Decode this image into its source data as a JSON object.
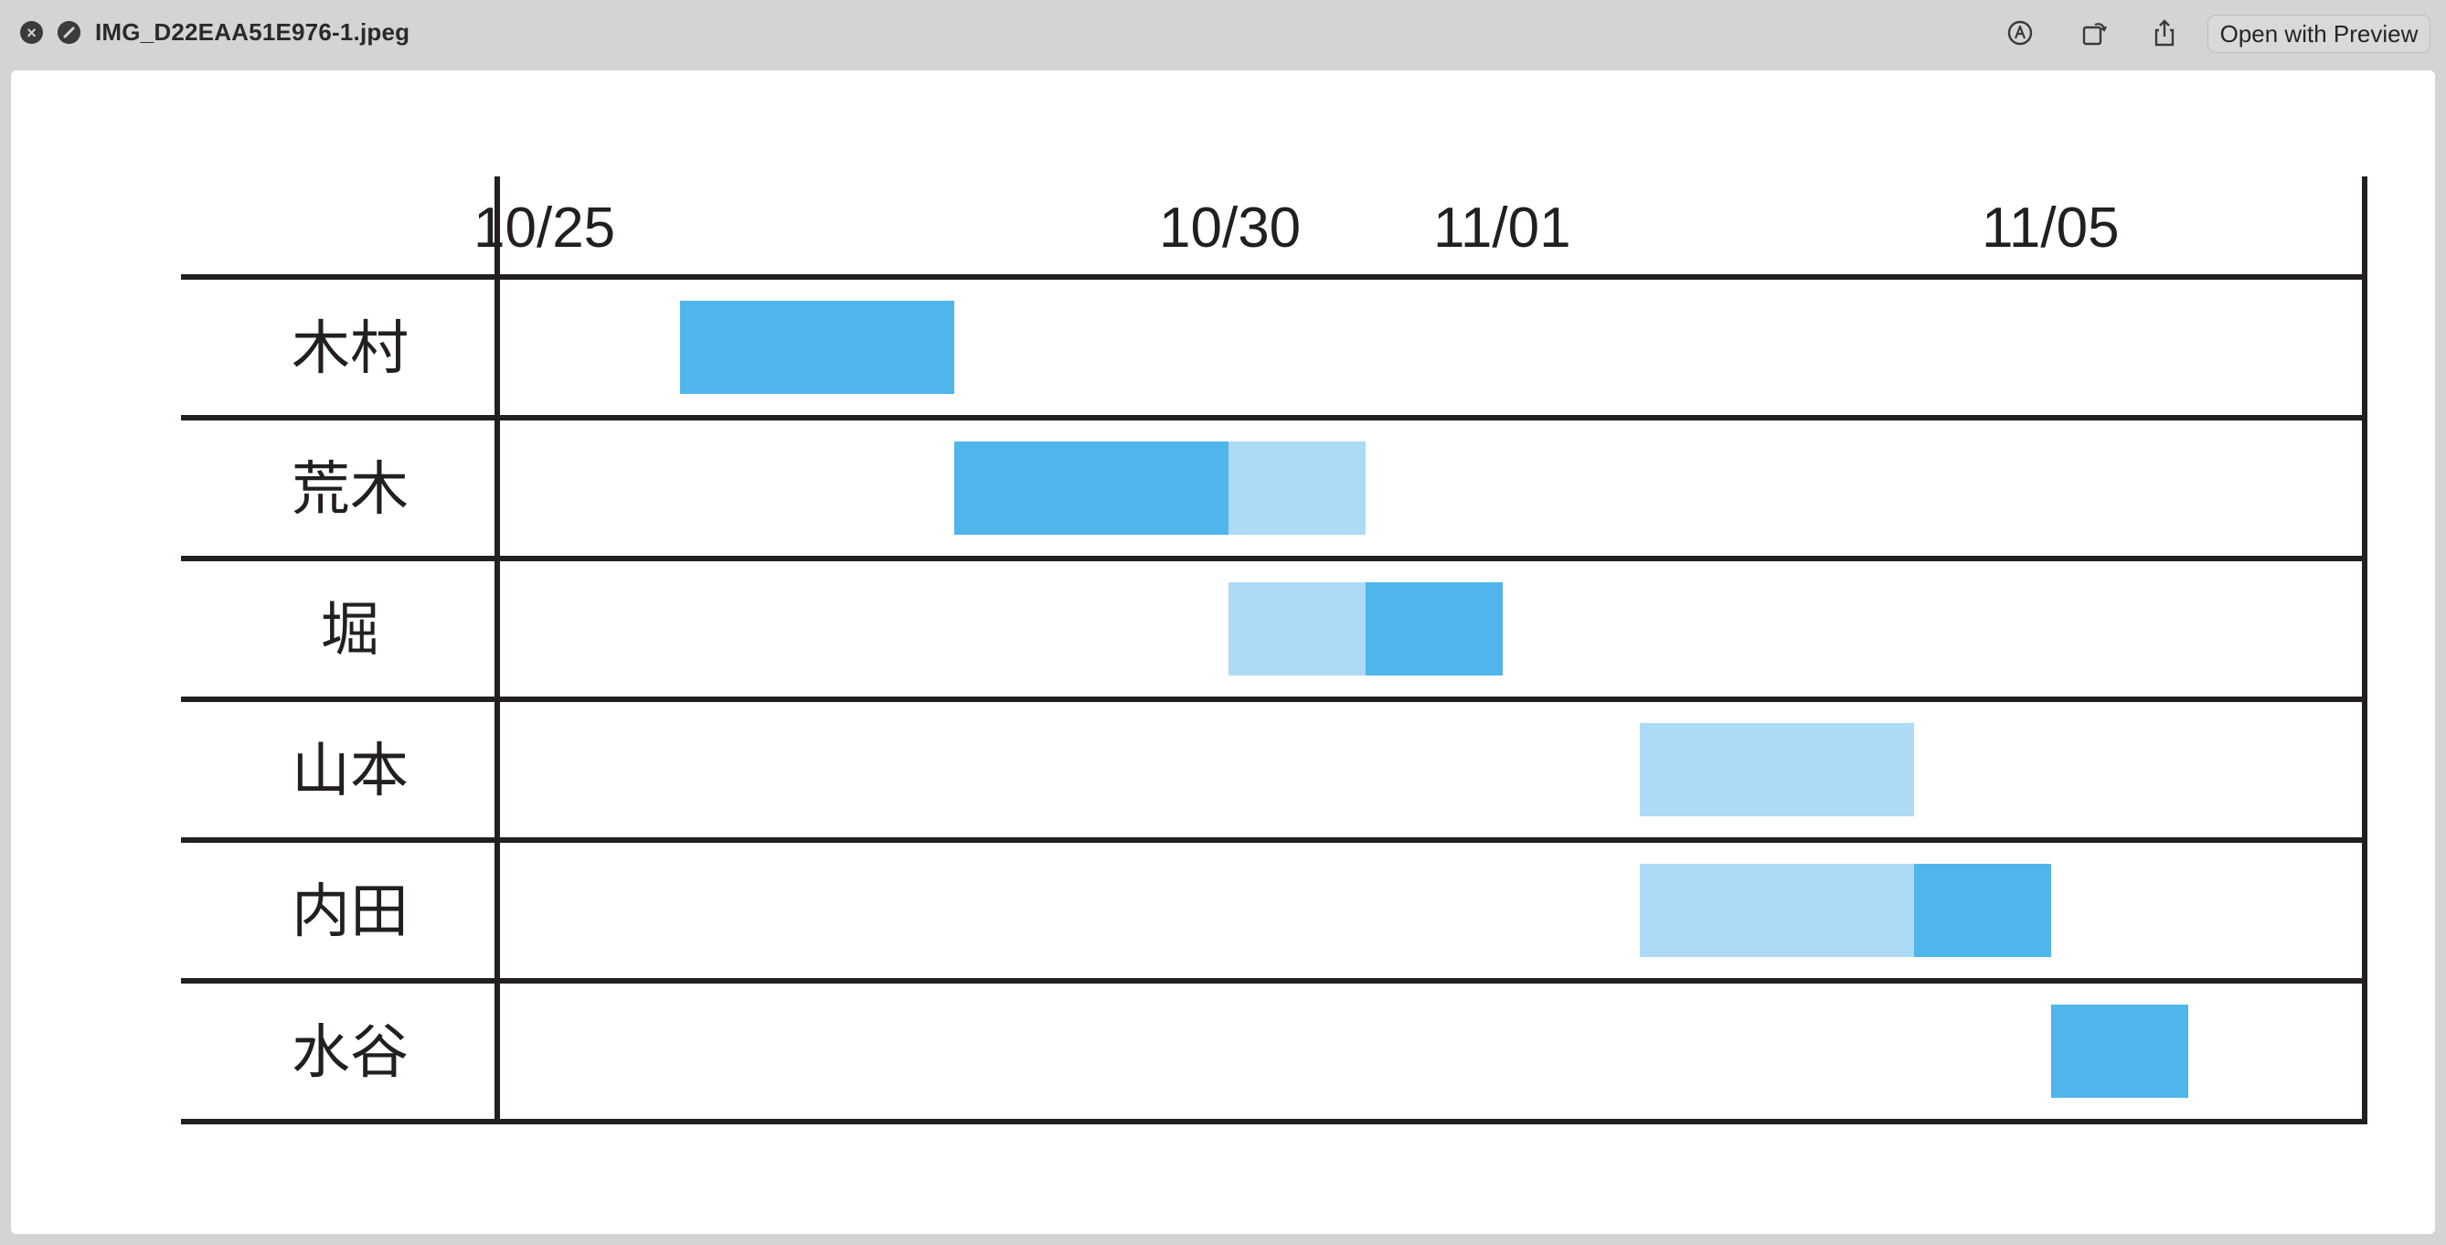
{
  "window": {
    "title": "IMG_D22EAA51E976-1.jpeg",
    "open_button_label": "Open with Preview",
    "icons": [
      "close-icon",
      "open-icon",
      "markup-icon",
      "rotate-icon",
      "share-icon"
    ]
  },
  "chart_data": {
    "type": "gantt",
    "date_labels": [
      "10/25",
      "10/30",
      "11/01",
      "11/05"
    ],
    "rows": [
      {
        "name": "木村",
        "segments": [
          {
            "start": "10/26",
            "end": "10/28",
            "shade": "dark"
          }
        ]
      },
      {
        "name": "荒木",
        "segments": [
          {
            "start": "10/28",
            "end": "10/30",
            "shade": "dark"
          },
          {
            "start": "10/30",
            "end": "10/31",
            "shade": "light"
          }
        ]
      },
      {
        "name": "堀",
        "segments": [
          {
            "start": "10/30",
            "end": "10/31",
            "shade": "light"
          },
          {
            "start": "10/31",
            "end": "11/01",
            "shade": "dark"
          }
        ]
      },
      {
        "name": "山本",
        "segments": [
          {
            "start": "11/02",
            "end": "11/04",
            "shade": "light"
          }
        ]
      },
      {
        "name": "内田",
        "segments": [
          {
            "start": "11/02",
            "end": "11/04",
            "shade": "light"
          },
          {
            "start": "11/04",
            "end": "11/05",
            "shade": "dark"
          }
        ]
      },
      {
        "name": "水谷",
        "segments": [
          {
            "start": "11/05",
            "end": "11/06",
            "shade": "dark"
          }
        ]
      }
    ],
    "colors": {
      "dark": "#4fb5ea",
      "light": "#addbf5",
      "grid": "#231f20"
    }
  }
}
